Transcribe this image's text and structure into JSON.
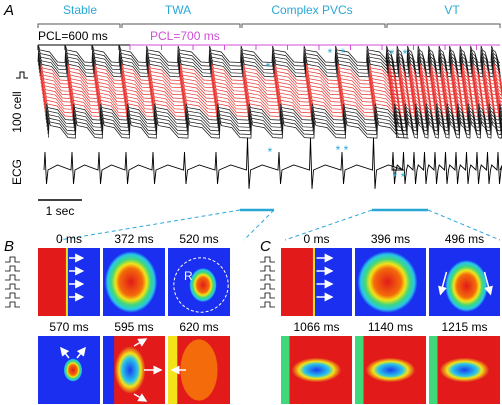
{
  "panel_a": {
    "label": "A",
    "phases": [
      "Stable",
      "TWA",
      "Complex PVCs",
      "VT"
    ],
    "pcl": [
      "PCL=600 ms",
      "PCL=700 ms"
    ],
    "trace_label": "100 cell",
    "ecg_label": "ECG",
    "scale_bar": "1 sec",
    "markers": [
      "*",
      "*",
      "*",
      "*",
      "*",
      "*",
      "*",
      "*",
      "*",
      "*"
    ]
  },
  "panel_b": {
    "label": "B",
    "frames": [
      "0 ms",
      "372 ms",
      "520 ms",
      "570 ms",
      "595 ms",
      "620 ms"
    ],
    "radius_label": "R"
  },
  "panel_c": {
    "label": "C",
    "frames": [
      "0 ms",
      "396 ms",
      "496 ms",
      "1066 ms",
      "1140 ms",
      "1215 ms"
    ]
  }
}
